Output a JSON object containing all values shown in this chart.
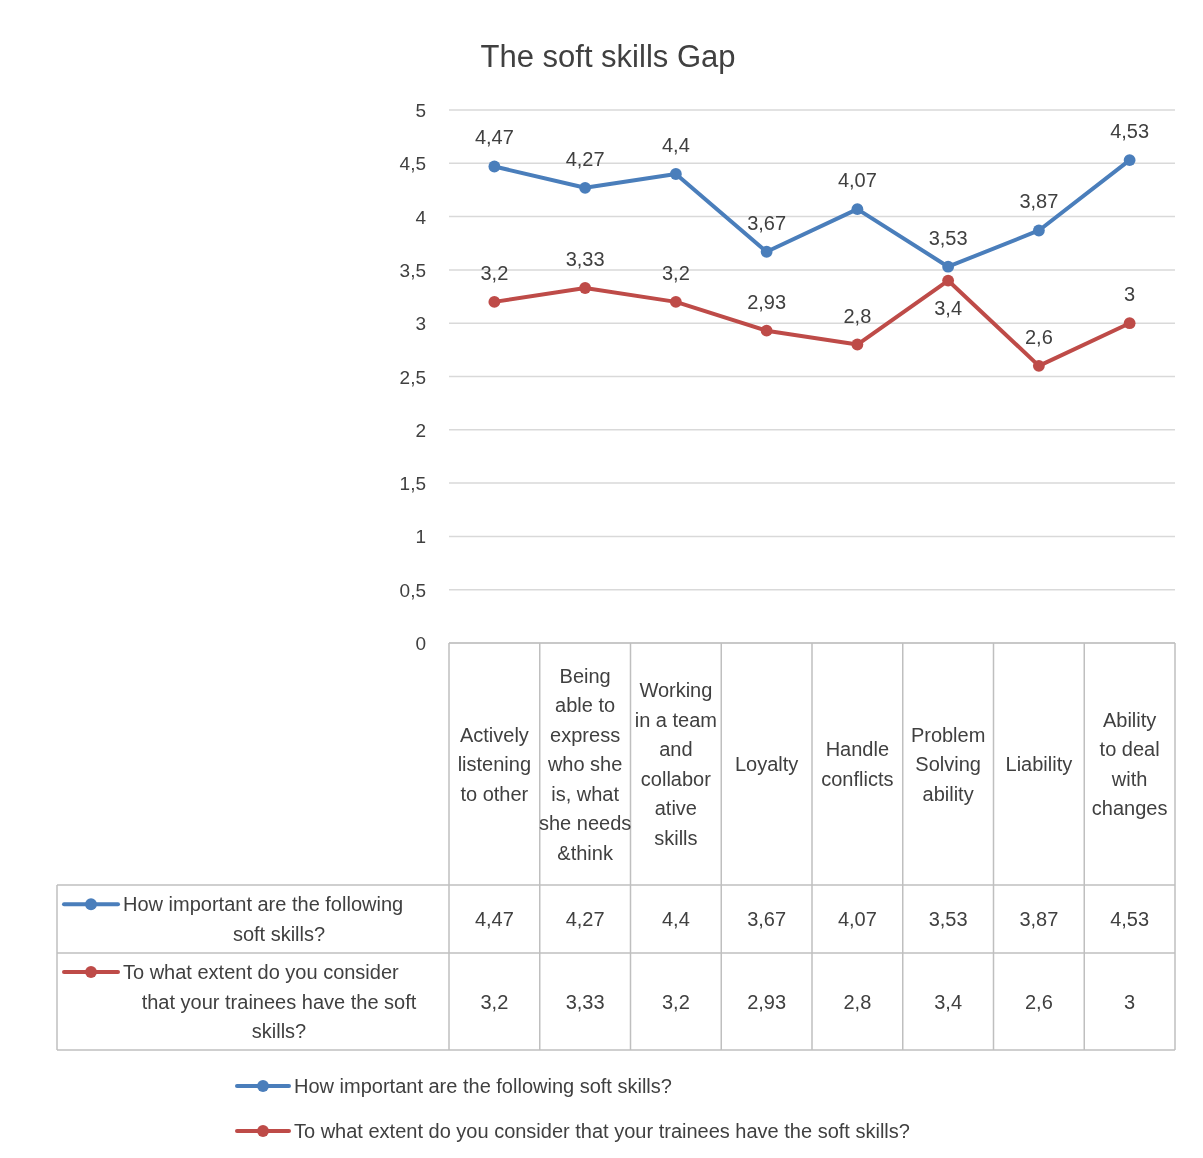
{
  "chart_data": {
    "type": "line",
    "title": "The soft skills Gap",
    "categories": [
      "Actively listening to other",
      "Being able to express who she is, what she needs &think",
      "Working in a team and collaborative skills",
      "Loyalty",
      "Handle conflicts",
      "Problem Solving ability",
      "Liability",
      "Ability to deal with changes"
    ],
    "series": [
      {
        "name": "How important are the following soft skills?",
        "color": "#4a7ebb",
        "values": [
          4.47,
          4.27,
          4.4,
          3.67,
          4.07,
          3.53,
          3.87,
          4.53
        ],
        "value_labels": [
          "4,47",
          "4,27",
          "4,4",
          "3,67",
          "4,07",
          "3,53",
          "3,87",
          "4,53"
        ]
      },
      {
        "name": "To what extent  do you consider that your trainees have  the soft skills?",
        "color": "#be4b48",
        "values": [
          3.2,
          3.33,
          3.2,
          2.93,
          2.8,
          3.4,
          2.6,
          3
        ],
        "value_labels": [
          "3,2",
          "3,33",
          "3,2",
          "2,93",
          "2,8",
          "3,4",
          "2,6",
          "3"
        ]
      }
    ],
    "ylim": [
      0,
      5
    ],
    "yticks": [
      {
        "value": 0,
        "label": "0"
      },
      {
        "value": 0.5,
        "label": "0,5"
      },
      {
        "value": 1,
        "label": "1"
      },
      {
        "value": 1.5,
        "label": "1,5"
      },
      {
        "value": 2,
        "label": "2"
      },
      {
        "value": 2.5,
        "label": "2,5"
      },
      {
        "value": 3,
        "label": "3"
      },
      {
        "value": 3.5,
        "label": "3,5"
      },
      {
        "value": 4,
        "label": "4"
      },
      {
        "value": 4.5,
        "label": "4,5"
      },
      {
        "value": 5,
        "label": "5"
      }
    ],
    "grid": "y",
    "legend": "bottom",
    "marker": "circle",
    "line_style": "solid"
  }
}
